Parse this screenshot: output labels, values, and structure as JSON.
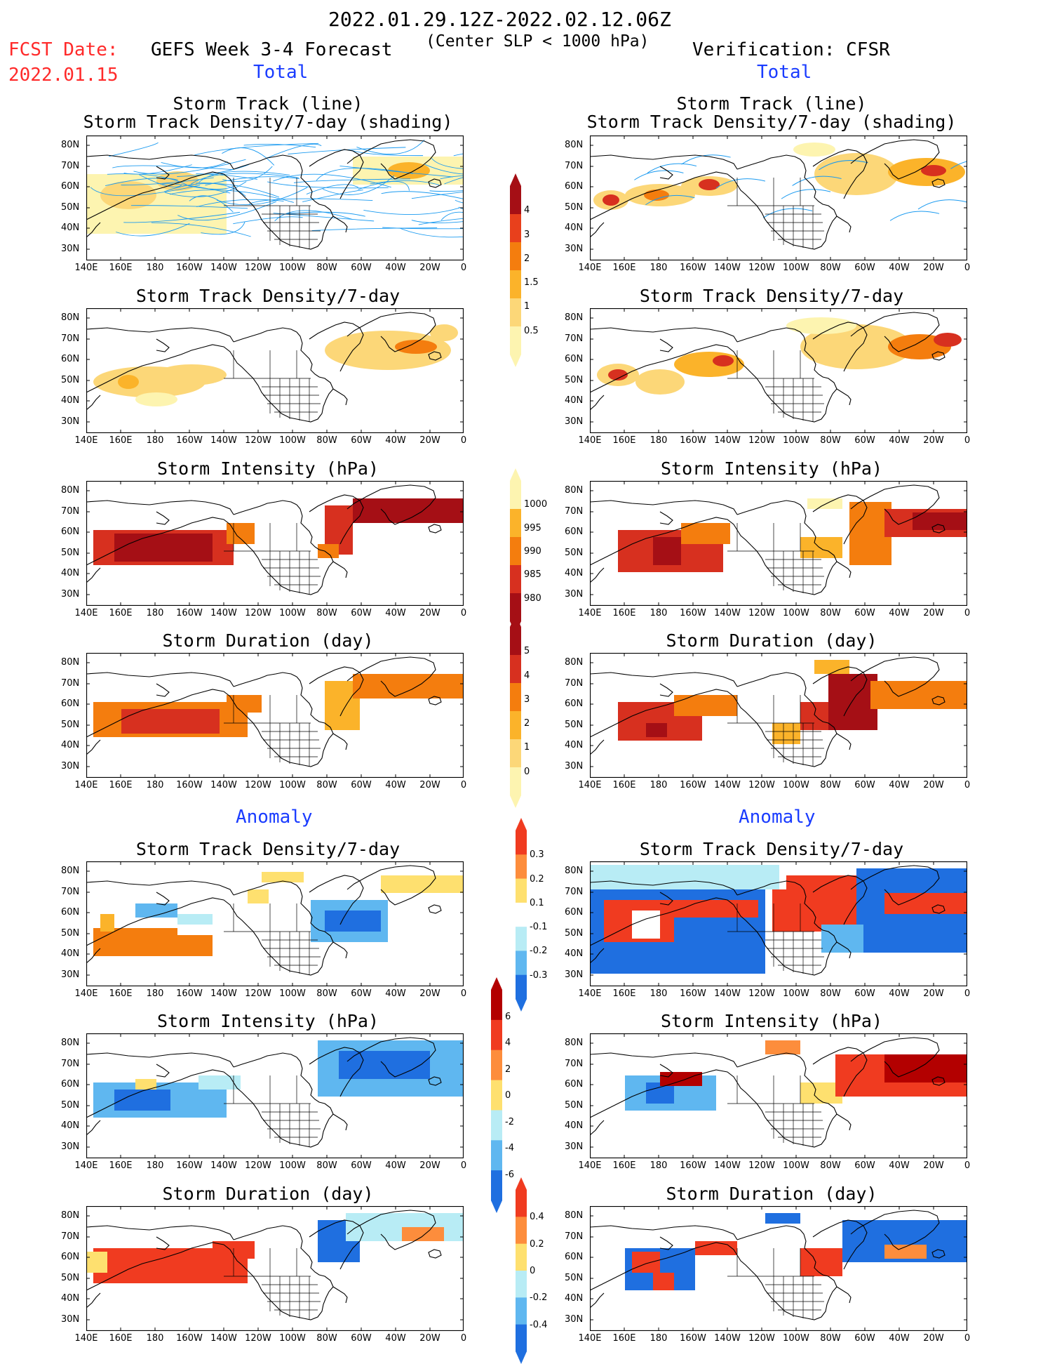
{
  "header": {
    "fcst_label": "FCST Date:",
    "fcst_date": "2022.01.15",
    "period": "2022.01.29.12Z-2022.02.12.06Z",
    "criterion": "(Center SLP < 1000 hPa)",
    "left_source": "GEFS Week 3-4 Forecast",
    "right_source": "Verification: CFSR",
    "total_label": "Total",
    "anomaly_label": "Anomaly"
  },
  "axes": {
    "lat_ticks": [
      "80N",
      "70N",
      "60N",
      "50N",
      "40N",
      "30N"
    ],
    "lon_ticks": [
      "140E",
      "160E",
      "180",
      "160W",
      "140W",
      "120W",
      "100W",
      "80W",
      "60W",
      "40W",
      "20W",
      "0"
    ]
  },
  "rows": [
    {
      "title1": "Storm Track (line)",
      "title2": "Storm Track Density/7-day (shading)"
    },
    {
      "title1": "Storm Track Density/7-day",
      "title2": ""
    },
    {
      "title1": "Storm Intensity (hPa)",
      "title2": ""
    },
    {
      "title1": "Storm Duration (day)",
      "title2": ""
    },
    {
      "title1": "Storm Track Density/7-day",
      "title2": ""
    },
    {
      "title1": "Storm Intensity (hPa)",
      "title2": ""
    },
    {
      "title1": "Storm Duration (day)",
      "title2": ""
    }
  ],
  "colorbars": [
    {
      "labels": [
        "4",
        "3",
        "2",
        "1.5",
        "1",
        "0.5"
      ],
      "colors": [
        "#a50f15",
        "#e8401c",
        "#f47d0e",
        "#fbb32a",
        "#fcd778",
        "#fdf4b0"
      ]
    },
    {
      "labels": [
        "1000",
        "995",
        "990",
        "985",
        "980"
      ],
      "colors": [
        "#fdf4b0",
        "#fbb32a",
        "#f47d0e",
        "#d7301f",
        "#a50f15"
      ]
    },
    {
      "labels": [
        "5",
        "4",
        "3",
        "2",
        "1",
        "0"
      ],
      "colors": [
        "#a50f15",
        "#d7301f",
        "#f47d0e",
        "#fbb32a",
        "#fcd778",
        "#fdf4b0"
      ]
    },
    {
      "labels": [
        "0.3",
        "0.2",
        "0.1",
        "-0.1",
        "-0.2",
        "-0.3"
      ],
      "colors": [
        "#f03b20",
        "#fd8d3c",
        "#fee06f",
        "#ffffff",
        "#b8ecf5",
        "#5fb7f0",
        "#1f6fe0"
      ]
    },
    {
      "labels": [
        "6",
        "4",
        "2",
        "0",
        "-2",
        "-4",
        "-6"
      ],
      "colors": [
        "#b30000",
        "#f03b20",
        "#fd8d3c",
        "#fee06f",
        "#b8ecf5",
        "#5fb7f0",
        "#1f6fe0"
      ]
    },
    {
      "labels": [
        "0.4",
        "0.2",
        "0",
        "-0.2",
        "-0.4"
      ],
      "colors": [
        "#f03b20",
        "#fd8d3c",
        "#fee06f",
        "#b8ecf5",
        "#5fb7f0",
        "#1f6fe0"
      ]
    }
  ]
}
